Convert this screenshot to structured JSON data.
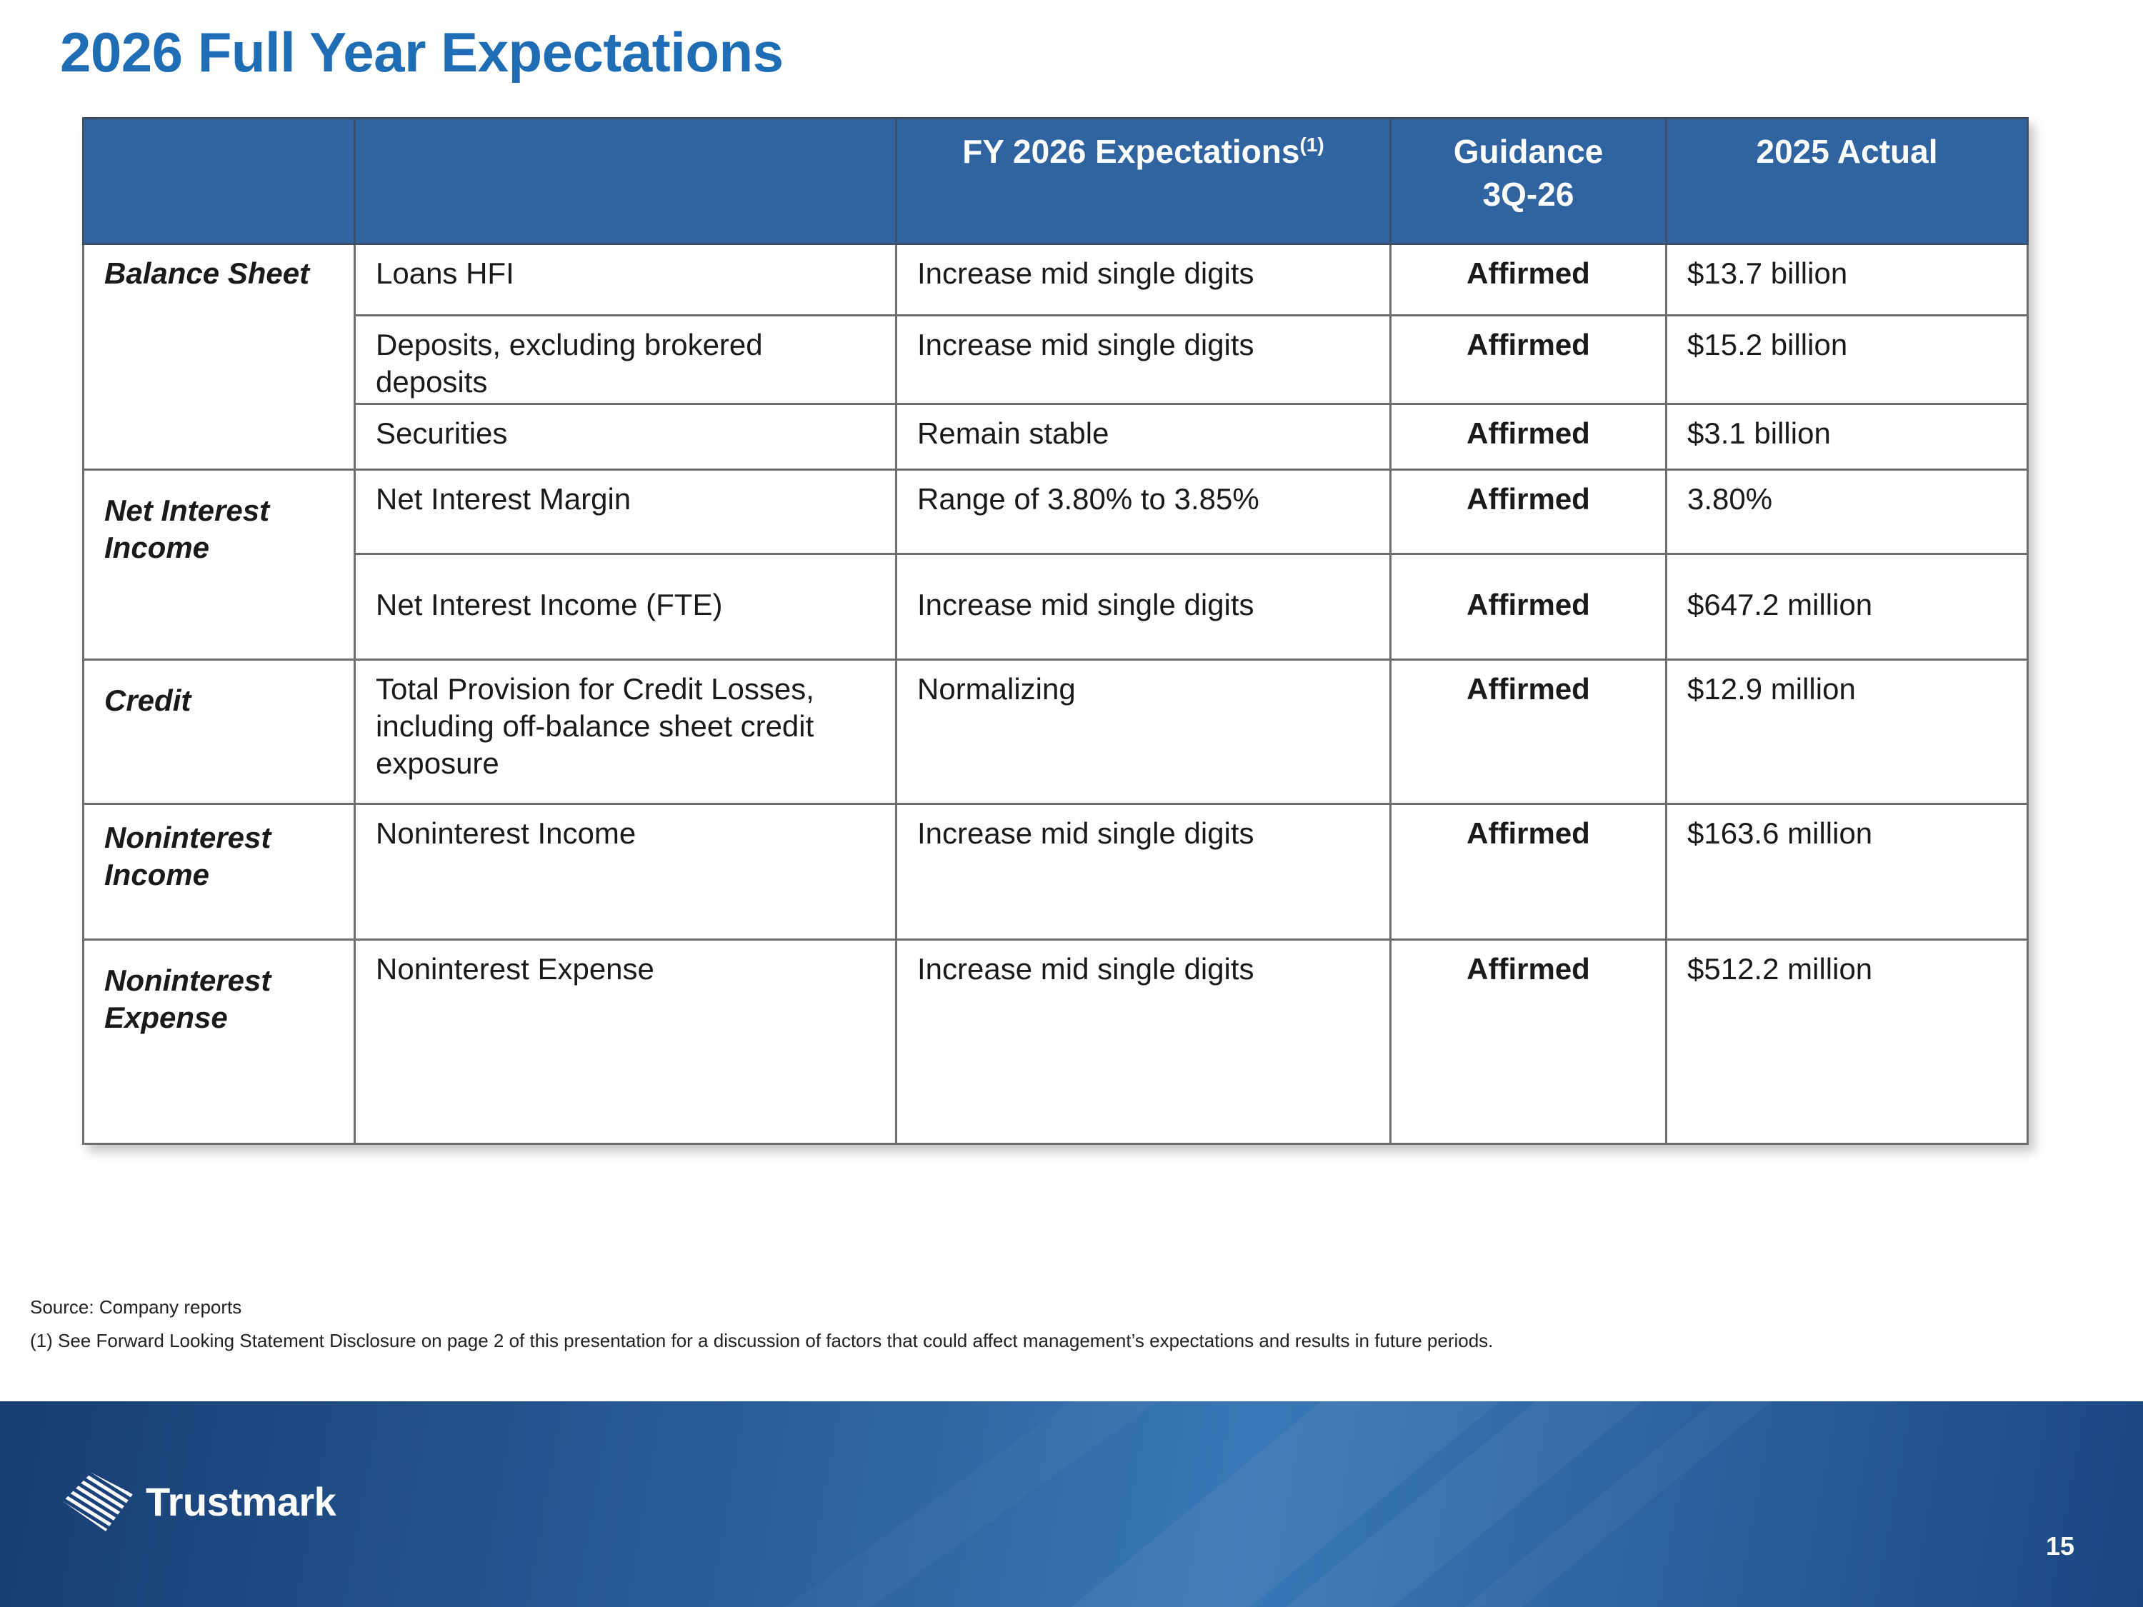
{
  "title": "2026 Full Year Expectations",
  "table": {
    "headers": {
      "category": "",
      "item": "",
      "expectations": "FY 2026 Expectations",
      "expectations_sup": "(1)",
      "guidance_line1": "Guidance",
      "guidance_line2": "3Q-26",
      "actual": "2025 Actual"
    },
    "groups": [
      {
        "category": "Balance Sheet",
        "rows": [
          {
            "item": "Loans HFI",
            "expectation": "Increase mid single digits",
            "guidance": "Affirmed",
            "actual": "$13.7 billion"
          },
          {
            "item": "Deposits, excluding brokered deposits",
            "expectation": "Increase mid single digits",
            "guidance": "Affirmed",
            "actual": "$15.2 billion"
          },
          {
            "item": "Securities",
            "expectation": "Remain stable",
            "guidance": "Affirmed",
            "actual": "$3.1 billion"
          }
        ]
      },
      {
        "category": "Net Interest Income",
        "rows": [
          {
            "item": "Net Interest Margin",
            "expectation": "Range of 3.80% to 3.85%",
            "guidance": "Affirmed",
            "actual": "3.80%"
          },
          {
            "item": "Net Interest Income (FTE)",
            "expectation": "Increase mid single digits",
            "guidance": "Affirmed",
            "actual": "$647.2 million"
          }
        ]
      },
      {
        "category": "Credit",
        "rows": [
          {
            "item": "Total Provision for Credit Losses, including off-balance sheet credit exposure",
            "expectation": "Normalizing",
            "guidance": "Affirmed",
            "actual": "$12.9 million"
          }
        ]
      },
      {
        "category": "Noninterest Income",
        "rows": [
          {
            "item": "Noninterest Income",
            "expectation": "Increase mid single digits",
            "guidance": "Affirmed",
            "actual": "$163.6 million"
          }
        ]
      },
      {
        "category": "Noninterest Expense",
        "rows": [
          {
            "item": "Noninterest Expense",
            "expectation": "Increase mid single digits",
            "guidance": "Affirmed",
            "actual": "$512.2 million"
          }
        ]
      }
    ]
  },
  "footnotes": {
    "source": "Source: Company reports",
    "note1": "(1) See Forward Looking Statement Disclosure on page 2 of this presentation for a discussion of factors that could affect management’s expectations and results in future periods."
  },
  "footer": {
    "brand": "Trustmark",
    "page_number": "15"
  },
  "colors": {
    "title": "#1f6db5",
    "header_bg": "#2f64a0",
    "category_text": "#2c5f98",
    "footer_dark": "#173d73",
    "footer_light": "#3a77b6"
  },
  "icons": {
    "logo": "trustmark-striped-ribbon-logo-icon"
  }
}
